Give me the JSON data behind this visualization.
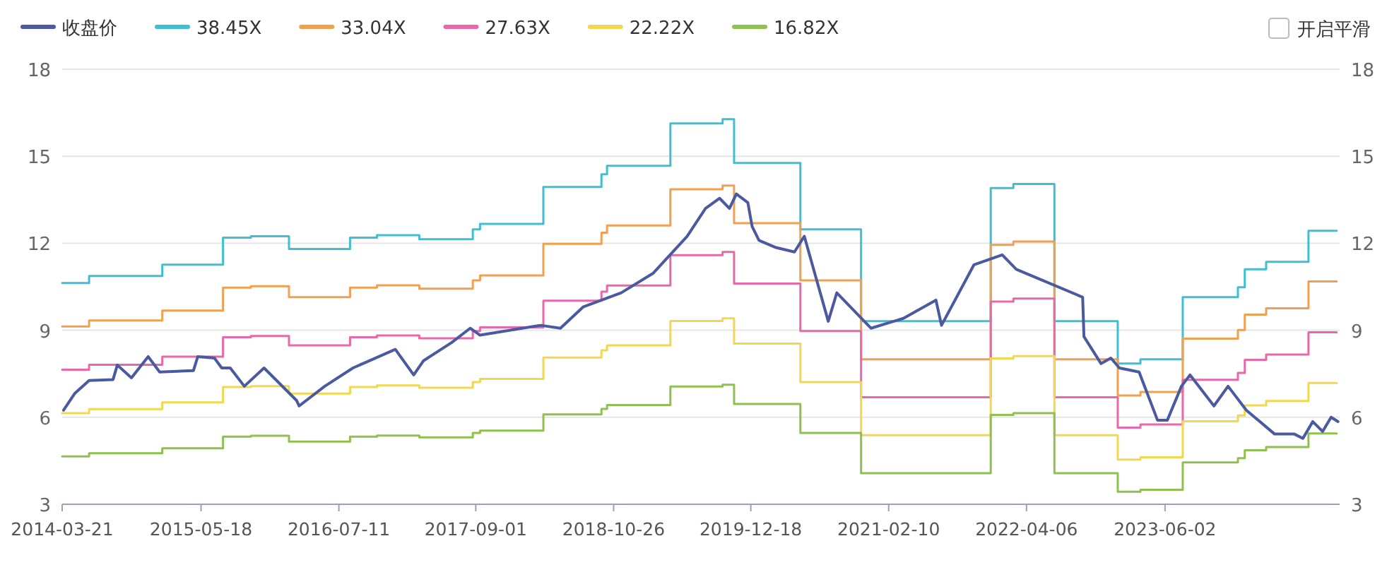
{
  "chart_data": {
    "type": "line",
    "legend": "top left",
    "grid": "y",
    "annotations": [
      "开启平滑"
    ],
    "xlim": [
      "2014-03-21",
      "2024-11-15"
    ],
    "xticks": [
      "2014-03-21",
      "2015-05-18",
      "2016-07-11",
      "2017-09-01",
      "2018-10-26",
      "2019-12-18",
      "2021-02-10",
      "2022-04-06",
      "2023-06-02"
    ],
    "ylim": [
      3,
      18
    ],
    "yticks": [
      3,
      6,
      9,
      12,
      15,
      18
    ],
    "y2lim": [
      3,
      18
    ],
    "y2ticks": [
      3,
      6,
      9,
      12,
      15,
      18
    ],
    "series": [
      {
        "name": "收盘价",
        "type": "line",
        "color": "#4b5aa0",
        "x": [
          "2014-03-25",
          "2014-04-29",
          "2014-06-11",
          "2014-08-23",
          "2014-09-05",
          "2014-10-18",
          "2014-12-08",
          "2015-01-12",
          "2015-04-25",
          "2015-05-08",
          "2015-06-28",
          "2015-07-20",
          "2015-08-15",
          "2015-09-27",
          "2015-11-26",
          "2016-03-04",
          "2016-03-12",
          "2016-05-29",
          "2016-08-23",
          "2016-12-30",
          "2017-02-24",
          "2017-03-26",
          "2017-06-20",
          "2017-08-15",
          "2017-09-14",
          "2018-03-18",
          "2018-05-17",
          "2018-07-25",
          "2018-11-18",
          "2019-02-24",
          "2019-06-07",
          "2019-08-02",
          "2019-09-14",
          "2019-10-14",
          "2019-11-04",
          "2019-12-09",
          "2019-12-22",
          "2020-01-12",
          "2020-03-04",
          "2020-04-29",
          "2020-05-29",
          "2020-08-10",
          "2020-09-05",
          "2020-12-18",
          "2021-03-27",
          "2021-07-04",
          "2021-07-21",
          "2021-10-28",
          "2022-01-22",
          "2022-03-06",
          "2022-09-24",
          "2022-09-28",
          "2022-11-19",
          "2022-12-19",
          "2023-01-14",
          "2023-03-15",
          "2023-05-10",
          "2023-06-09",
          "2023-07-22",
          "2023-08-17",
          "2023-10-29",
          "2023-12-11",
          "2024-02-05",
          "2024-05-01",
          "2024-06-30",
          "2024-07-26",
          "2024-08-25",
          "2024-09-24",
          "2024-10-20",
          "2024-11-10"
        ],
        "values": [
          6.24,
          6.83,
          7.27,
          7.3,
          7.8,
          7.36,
          8.09,
          7.56,
          7.61,
          8.09,
          8.04,
          7.7,
          7.7,
          7.07,
          7.7,
          6.58,
          6.39,
          7.07,
          7.7,
          8.34,
          7.46,
          7.95,
          8.58,
          9.07,
          8.83,
          9.17,
          9.07,
          9.8,
          10.29,
          10.97,
          12.24,
          13.2,
          13.55,
          13.2,
          13.7,
          13.4,
          12.58,
          12.1,
          11.85,
          11.7,
          12.24,
          9.31,
          10.29,
          9.07,
          9.41,
          10.04,
          9.17,
          11.26,
          11.6,
          11.1,
          10.14,
          8.78,
          7.85,
          8.04,
          7.7,
          7.56,
          5.9,
          5.9,
          7.07,
          7.46,
          6.39,
          7.07,
          6.24,
          5.42,
          5.42,
          5.27,
          5.85,
          5.51,
          6.0,
          5.85
        ]
      },
      {
        "name": "38.45X",
        "type": "step",
        "color": "#3fbfcf",
        "x": [
          "2014-03-21",
          "2014-06-11",
          "2015-01-20",
          "2015-07-24",
          "2015-10-17",
          "2016-02-10",
          "2016-08-14",
          "2016-11-04",
          "2017-03-13",
          "2017-08-23",
          "2017-09-14",
          "2018-03-26",
          "2018-09-19",
          "2018-10-06",
          "2019-04-17",
          "2019-09-23",
          "2019-10-28",
          "2020-05-17",
          "2020-11-18",
          "2021-12-18",
          "2022-02-25",
          "2022-06-30",
          "2023-01-09",
          "2023-03-19",
          "2023-07-26",
          "2024-01-10",
          "2024-01-31",
          "2024-04-05",
          "2024-08-12",
          "2024-11-06"
        ],
        "values": [
          10.63,
          10.87,
          11.26,
          12.19,
          12.24,
          11.8,
          12.19,
          12.28,
          12.14,
          12.48,
          12.67,
          13.94,
          14.38,
          14.67,
          16.13,
          16.28,
          14.77,
          12.48,
          9.31,
          13.9,
          14.04,
          9.31,
          7.85,
          8.0,
          10.14,
          10.48,
          11.1,
          11.36,
          12.43,
          12.43
        ]
      },
      {
        "name": "33.04X",
        "type": "step",
        "color": "#f0a050",
        "x": [
          "2014-03-21",
          "2014-06-11",
          "2015-01-20",
          "2015-07-24",
          "2015-10-17",
          "2016-02-10",
          "2016-08-14",
          "2016-11-04",
          "2017-03-13",
          "2017-08-23",
          "2017-09-14",
          "2018-03-26",
          "2018-09-19",
          "2018-10-06",
          "2019-04-17",
          "2019-09-23",
          "2019-10-28",
          "2020-05-17",
          "2020-11-18",
          "2021-12-18",
          "2022-02-25",
          "2022-06-30",
          "2023-01-09",
          "2023-03-19",
          "2023-07-26",
          "2024-01-10",
          "2024-01-31",
          "2024-04-05",
          "2024-08-12",
          "2024-11-06"
        ],
        "values": [
          9.13,
          9.34,
          9.68,
          10.47,
          10.52,
          10.14,
          10.47,
          10.55,
          10.43,
          10.72,
          10.89,
          11.98,
          12.36,
          12.61,
          13.86,
          13.99,
          12.69,
          10.72,
          8.0,
          11.94,
          12.06,
          8.0,
          6.75,
          6.87,
          8.71,
          9.01,
          9.54,
          9.76,
          10.68,
          10.68
        ]
      },
      {
        "name": "27.63X",
        "type": "step",
        "color": "#e868a8",
        "x": [
          "2014-03-21",
          "2014-06-11",
          "2015-01-20",
          "2015-07-24",
          "2015-10-17",
          "2016-02-10",
          "2016-08-14",
          "2016-11-04",
          "2017-03-13",
          "2017-08-23",
          "2017-09-14",
          "2018-03-26",
          "2018-09-19",
          "2018-10-06",
          "2019-04-17",
          "2019-09-23",
          "2019-10-28",
          "2020-05-17",
          "2020-11-18",
          "2021-12-18",
          "2022-02-25",
          "2022-06-30",
          "2023-01-09",
          "2023-03-19",
          "2023-07-26",
          "2024-01-10",
          "2024-01-31",
          "2024-04-05",
          "2024-08-12",
          "2024-11-06"
        ],
        "values": [
          7.64,
          7.81,
          8.09,
          8.76,
          8.8,
          8.48,
          8.76,
          8.82,
          8.72,
          8.97,
          9.1,
          10.02,
          10.33,
          10.54,
          11.59,
          11.7,
          10.61,
          8.97,
          6.69,
          9.99,
          10.09,
          6.69,
          5.64,
          5.75,
          7.29,
          7.53,
          7.98,
          8.16,
          8.93,
          8.93
        ]
      },
      {
        "name": "22.22X",
        "type": "step",
        "color": "#f0d850",
        "x": [
          "2014-03-21",
          "2014-06-11",
          "2015-01-20",
          "2015-07-24",
          "2015-10-17",
          "2016-02-10",
          "2016-08-14",
          "2016-11-04",
          "2017-03-13",
          "2017-08-23",
          "2017-09-14",
          "2018-03-26",
          "2018-09-19",
          "2018-10-06",
          "2019-04-17",
          "2019-09-23",
          "2019-10-28",
          "2020-05-17",
          "2020-11-18",
          "2021-12-18",
          "2022-02-25",
          "2022-06-30",
          "2023-01-09",
          "2023-03-19",
          "2023-07-26",
          "2024-01-10",
          "2024-01-31",
          "2024-04-05",
          "2024-08-12",
          "2024-11-06"
        ],
        "values": [
          6.14,
          6.28,
          6.51,
          7.04,
          7.07,
          6.82,
          7.04,
          7.1,
          7.02,
          7.21,
          7.32,
          8.06,
          8.31,
          8.48,
          9.32,
          9.41,
          8.54,
          7.21,
          5.38,
          8.03,
          8.11,
          5.38,
          4.54,
          4.62,
          5.86,
          6.06,
          6.41,
          6.56,
          7.18,
          7.18
        ]
      },
      {
        "name": "16.82X",
        "type": "step",
        "color": "#90c050",
        "x": [
          "2014-03-21",
          "2014-06-11",
          "2015-01-20",
          "2015-07-24",
          "2015-10-17",
          "2016-02-10",
          "2016-08-14",
          "2016-11-04",
          "2017-03-13",
          "2017-08-23",
          "2017-09-14",
          "2018-03-26",
          "2018-09-19",
          "2018-10-06",
          "2019-04-17",
          "2019-09-23",
          "2019-10-28",
          "2020-05-17",
          "2020-11-18",
          "2021-12-18",
          "2022-02-25",
          "2022-06-30",
          "2023-01-09",
          "2023-03-19",
          "2023-07-26",
          "2024-01-10",
          "2024-01-31",
          "2024-04-05",
          "2024-08-12",
          "2024-11-06"
        ],
        "values": [
          4.65,
          4.76,
          4.93,
          5.33,
          5.36,
          5.16,
          5.33,
          5.37,
          5.31,
          5.46,
          5.54,
          6.1,
          6.29,
          6.42,
          7.06,
          7.12,
          6.46,
          5.46,
          4.07,
          6.08,
          6.14,
          4.07,
          3.43,
          3.5,
          4.44,
          4.59,
          4.86,
          4.97,
          5.44,
          5.44
        ]
      }
    ]
  }
}
